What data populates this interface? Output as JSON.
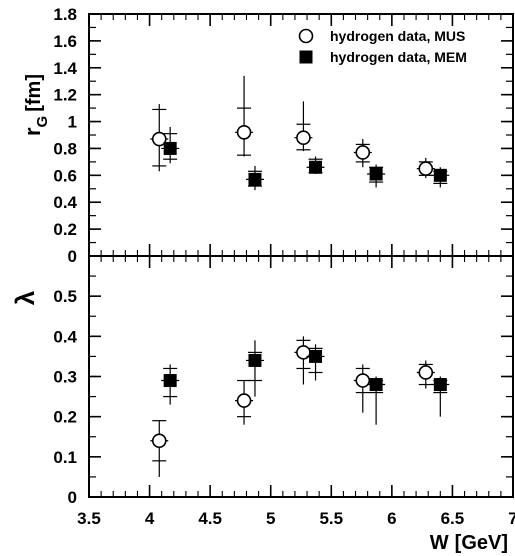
{
  "chart_data": [
    {
      "type": "scatter",
      "panel": "top",
      "ylabel_main": "r",
      "ylabel_sub": "G",
      "ylabel_unit": "[fm]",
      "xlim": [
        3.5,
        7
      ],
      "ylim": [
        0,
        1.8
      ],
      "yticks": [
        0,
        0.2,
        0.4,
        0.6,
        0.8,
        1,
        1.2,
        1.4,
        1.6,
        1.8
      ],
      "ytick_labels": [
        "0",
        "0.2",
        "0.4",
        "0.6",
        "0.8",
        "1",
        "1.2",
        "1.4",
        "1.6",
        "1.8"
      ],
      "legend_position": "top-right",
      "series": [
        {
          "name": "hydrogen data, MUS",
          "marker": "open-circle",
          "points": [
            {
              "x": 4.08,
              "y": 0.87,
              "lo": 0.63,
              "hi": 1.13,
              "syslo": 0.67,
              "syshi": 1.09
            },
            {
              "x": 4.78,
              "y": 0.92,
              "lo": 0.74,
              "hi": 1.34,
              "syslo": 0.75,
              "syshi": 1.1
            },
            {
              "x": 5.27,
              "y": 0.88,
              "lo": 0.78,
              "hi": 1.15,
              "syslo": 0.79,
              "syshi": 0.98
            },
            {
              "x": 5.76,
              "y": 0.77,
              "lo": 0.66,
              "hi": 0.87,
              "syslo": 0.7,
              "syshi": 0.83
            },
            {
              "x": 6.28,
              "y": 0.65,
              "lo": 0.58,
              "hi": 0.73,
              "syslo": 0.6,
              "syshi": 0.7
            }
          ]
        },
        {
          "name": "hydrogen data, MEM",
          "marker": "filled-square",
          "points": [
            {
              "x": 4.17,
              "y": 0.8,
              "lo": 0.69,
              "hi": 0.96,
              "syslo": 0.72,
              "syshi": 0.91
            },
            {
              "x": 4.87,
              "y": 0.57,
              "lo": 0.49,
              "hi": 0.67,
              "syslo": 0.52,
              "syshi": 0.63
            },
            {
              "x": 5.37,
              "y": 0.66,
              "lo": 0.61,
              "hi": 0.74,
              "syslo": 0.62,
              "syshi": 0.72
            },
            {
              "x": 5.87,
              "y": 0.61,
              "lo": 0.51,
              "hi": 0.68,
              "syslo": 0.55,
              "syshi": 0.66
            },
            {
              "x": 6.4,
              "y": 0.6,
              "lo": 0.51,
              "hi": 0.66,
              "syslo": 0.54,
              "syshi": 0.63
            }
          ]
        }
      ]
    },
    {
      "type": "scatter",
      "panel": "bottom",
      "ylabel": "λ",
      "xlabel_main": "W",
      "xlabel_unit": "[GeV]",
      "xlim": [
        3.5,
        7
      ],
      "ylim": [
        0,
        0.6
      ],
      "xticks": [
        3.5,
        4,
        4.5,
        5,
        5.5,
        6,
        6.5,
        7
      ],
      "xtick_labels": [
        "3.5",
        "4",
        "4.5",
        "5",
        "5.5",
        "6",
        "6.5",
        "7"
      ],
      "yticks": [
        0,
        0.1,
        0.2,
        0.3,
        0.4,
        0.5
      ],
      "ytick_labels": [
        "0",
        "0.1",
        "0.2",
        "0.3",
        "0.4",
        "0.5"
      ],
      "series": [
        {
          "marker": "open-circle",
          "points": [
            {
              "x": 4.08,
              "y": 0.14,
              "lo": 0.05,
              "hi": 0.19,
              "syslo": 0.09,
              "syshi": 0.19
            },
            {
              "x": 4.78,
              "y": 0.24,
              "lo": 0.18,
              "hi": 0.29,
              "syslo": 0.2,
              "syshi": 0.29
            },
            {
              "x": 5.27,
              "y": 0.36,
              "lo": 0.28,
              "hi": 0.4,
              "syslo": 0.32,
              "syshi": 0.39
            },
            {
              "x": 5.76,
              "y": 0.29,
              "lo": 0.21,
              "hi": 0.33,
              "syslo": 0.26,
              "syshi": 0.32
            },
            {
              "x": 6.28,
              "y": 0.31,
              "lo": 0.27,
              "hi": 0.34,
              "syslo": 0.28,
              "syshi": 0.33
            }
          ]
        },
        {
          "marker": "filled-square",
          "points": [
            {
              "x": 4.17,
              "y": 0.29,
              "lo": 0.23,
              "hi": 0.33,
              "syslo": 0.25,
              "syshi": 0.32
            },
            {
              "x": 4.87,
              "y": 0.34,
              "lo": 0.25,
              "hi": 0.39,
              "syslo": 0.29,
              "syshi": 0.36
            },
            {
              "x": 5.37,
              "y": 0.35,
              "lo": 0.29,
              "hi": 0.38,
              "syslo": 0.31,
              "syshi": 0.37
            },
            {
              "x": 5.87,
              "y": 0.28,
              "lo": 0.18,
              "hi": 0.3,
              "syslo": 0.26,
              "syshi": 0.29
            },
            {
              "x": 6.4,
              "y": 0.28,
              "lo": 0.2,
              "hi": 0.3,
              "syslo": 0.26,
              "syshi": 0.29
            }
          ]
        }
      ]
    }
  ]
}
